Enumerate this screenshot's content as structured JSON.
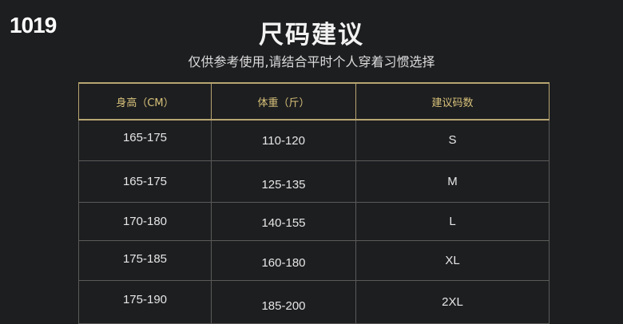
{
  "corner_label": "1019",
  "title": "尺码建议",
  "subtitle": "仅供参考使用,请结合平时个人穿着习惯选择",
  "table": {
    "headers": [
      "身高（CM）",
      "体重（斤）",
      "建议码数"
    ],
    "rows": [
      [
        "165-175",
        "110-120",
        "S"
      ],
      [
        "165-175",
        "125-135",
        "M"
      ],
      [
        "170-180",
        "140-155",
        "L"
      ],
      [
        "175-185",
        "160-180",
        "XL"
      ],
      [
        "175-190",
        "185-200",
        "2XL"
      ]
    ]
  },
  "colors": {
    "background": "#1d1e20",
    "accent_gold": "#d8c27a"
  }
}
